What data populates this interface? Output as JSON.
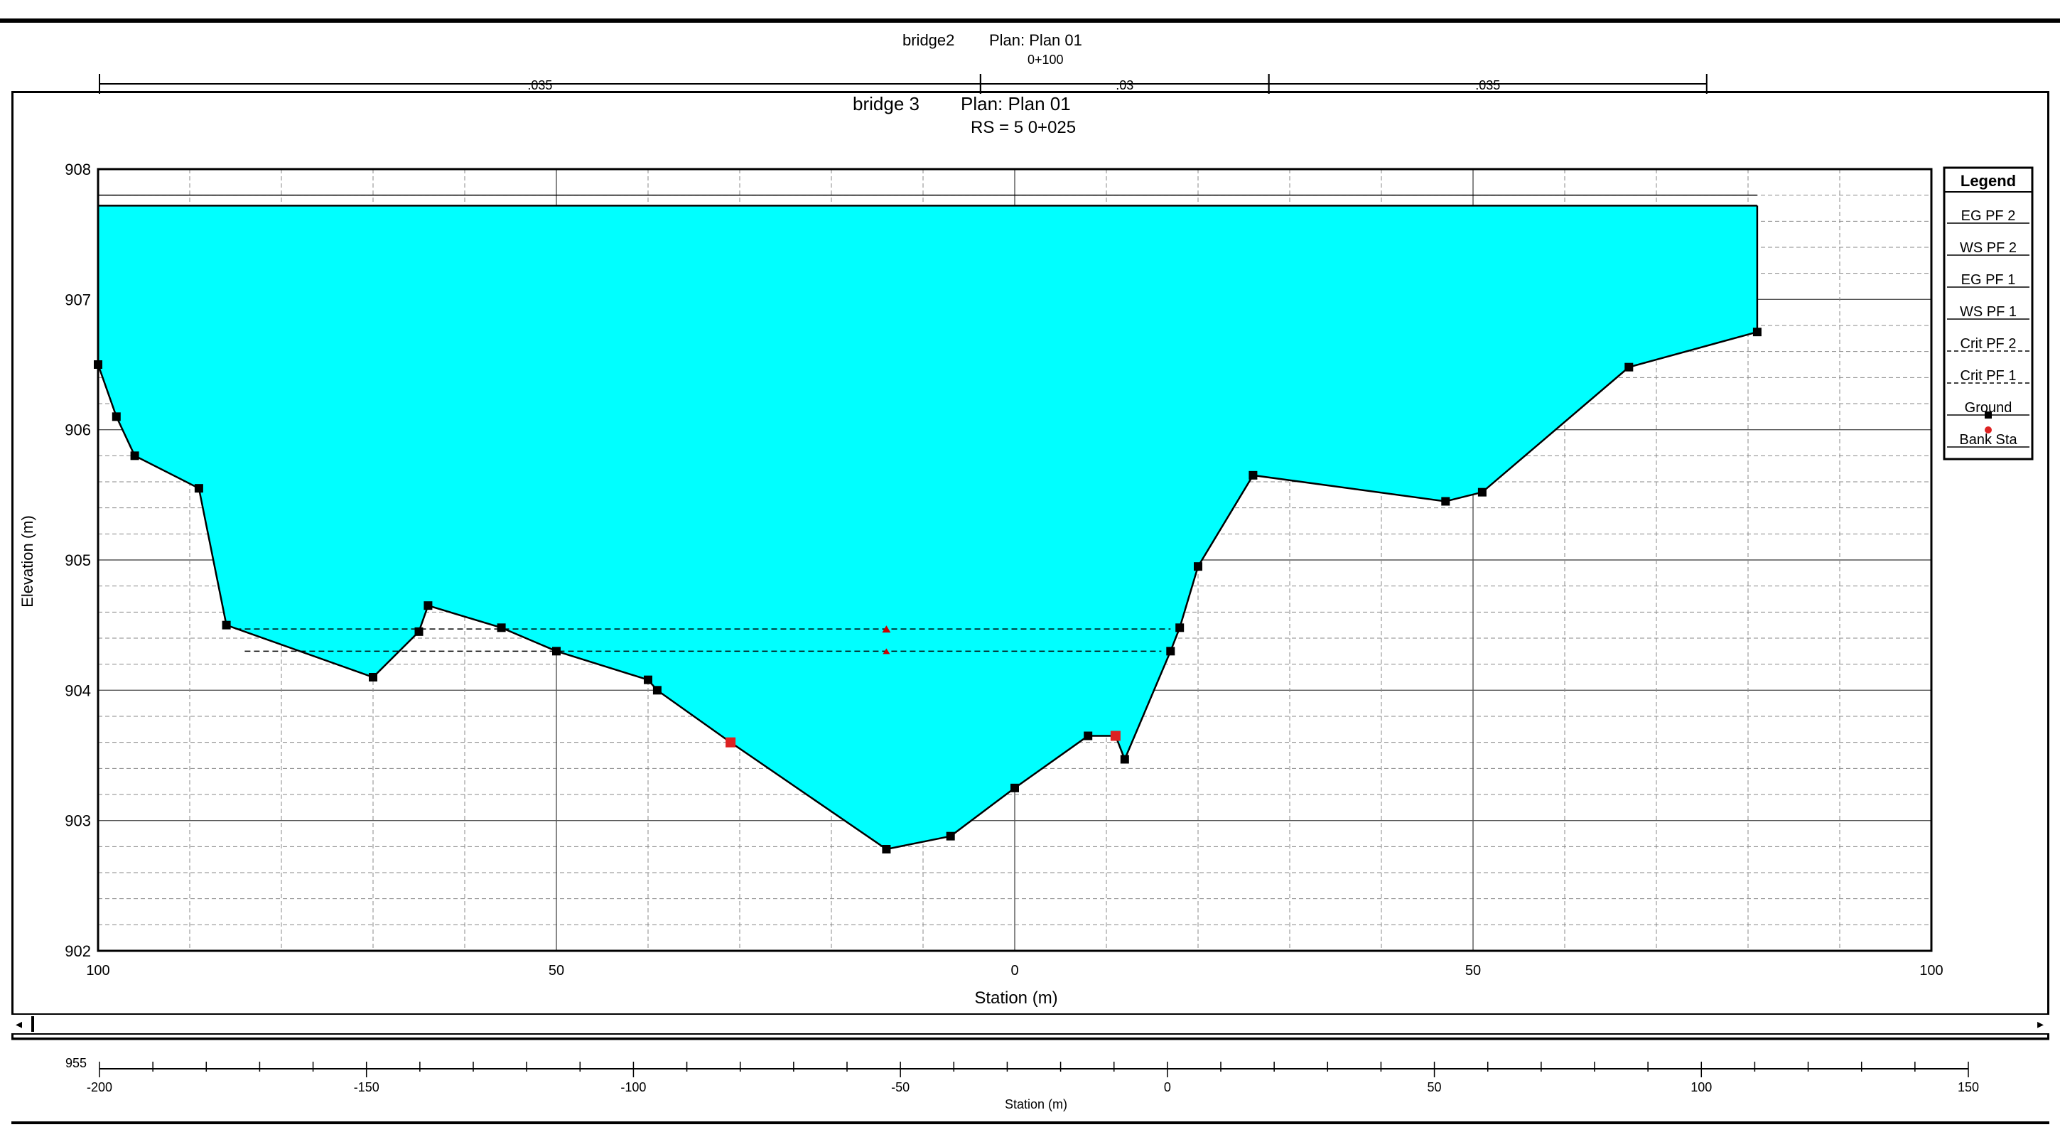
{
  "window_back": {
    "title_left": "bridge2",
    "title_plan": "Plan: Plan 01",
    "station_label": "0+100"
  },
  "chart_data": [
    {
      "type": "area",
      "title": "bridge 3",
      "plan": "Plan: Plan 01",
      "subtitle": "RS = 5   0+025",
      "xlabel": "Station (m)",
      "ylabel": "Elevation (m)",
      "xlim": [
        100,
        -100
      ],
      "ylim": [
        902,
        908
      ],
      "x_ticks": [
        100,
        50,
        0,
        50,
        100
      ],
      "y_ticks": [
        902,
        903,
        904,
        905,
        906,
        907,
        908
      ],
      "mannings": [
        {
          "label": ".035",
          "from": -200,
          "to": -35
        },
        {
          "label": ".03",
          "from": -35,
          "to": 19
        },
        {
          "label": ".035",
          "from": 19,
          "to": 101
        }
      ],
      "water_surface": 907.72,
      "energy_grade": 907.8,
      "critical_pf1": 904.3,
      "critical_pf2": 904.47,
      "ground": {
        "x": [
          100,
          98,
          96,
          89,
          86,
          70,
          65,
          64,
          56,
          50,
          40,
          39,
          31,
          14,
          7,
          0,
          -8,
          -11,
          -12,
          -17,
          -18,
          -20,
          -26,
          -47,
          -51,
          -67,
          -81
        ],
        "y": [
          906.5,
          906.1,
          905.8,
          905.55,
          904.5,
          904.1,
          904.45,
          904.65,
          904.48,
          904.3,
          904.08,
          904.0,
          903.6,
          902.78,
          902.88,
          903.25,
          903.65,
          903.65,
          903.47,
          904.3,
          904.48,
          904.95,
          905.65,
          905.45,
          905.52,
          906.48,
          906.75
        ]
      },
      "bank_stations": [
        {
          "x": 31,
          "y": 903.6
        },
        {
          "x": -11,
          "y": 903.65
        }
      ],
      "legend": {
        "title": "Legend",
        "entries": [
          "EG PF 2",
          "WS PF 2",
          "EG PF 1",
          "WS PF 1",
          "Crit PF 2",
          "Crit PF 1",
          "Ground",
          "Bank Sta"
        ]
      }
    },
    {
      "type": "line",
      "xlabel": "Station (m)",
      "y_tick": "955",
      "x_ticks": [
        -200,
        -150,
        -100,
        -50,
        0,
        50,
        100,
        150
      ]
    }
  ],
  "colors": {
    "water": "#00ffff",
    "crit_marker": "#cc0000",
    "bank_marker": "#dd2222"
  }
}
